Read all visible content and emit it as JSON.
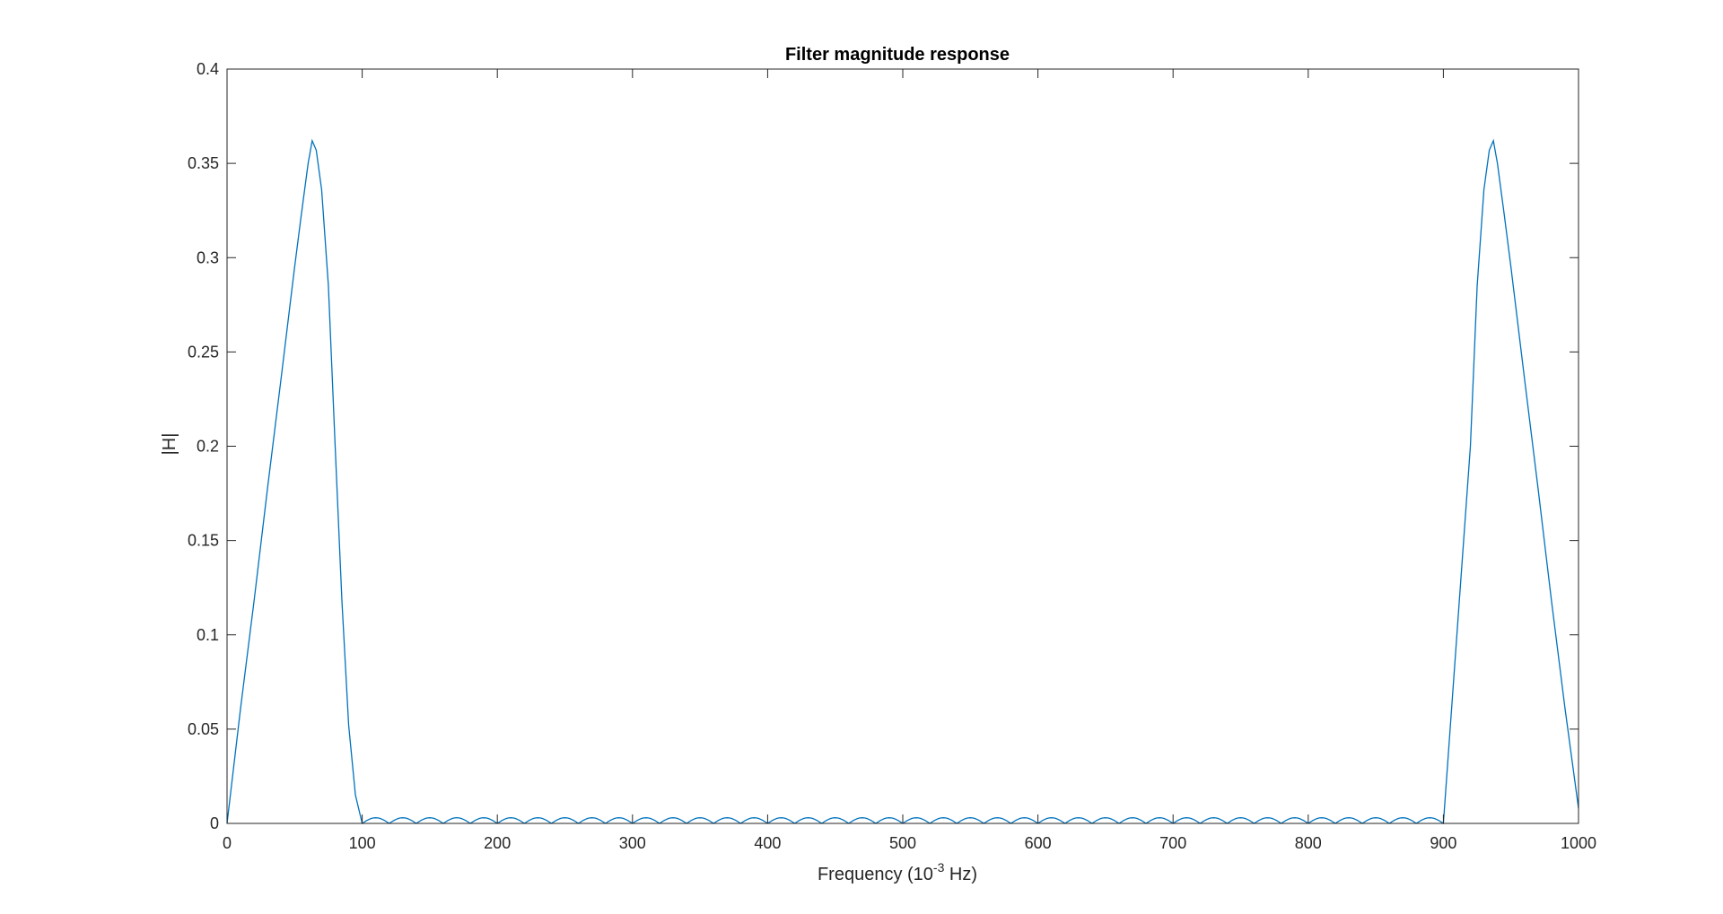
{
  "chart_data": {
    "type": "line",
    "title": "Filter magnitude response",
    "xlabel_base": "Frequency (10",
    "xlabel_exp": "-3",
    "xlabel_unit": " Hz)",
    "ylabel": "|H|",
    "xlim": [
      0,
      1000
    ],
    "ylim": [
      0,
      0.4
    ],
    "xticks": [
      0,
      100,
      200,
      300,
      400,
      500,
      600,
      700,
      800,
      900,
      1000
    ],
    "yticks": [
      0,
      0.05,
      0.1,
      0.15,
      0.2,
      0.25,
      0.3,
      0.35,
      0.4
    ],
    "ytick_labels": [
      "0",
      "0.05",
      "0.1",
      "0.15",
      "0.2",
      "0.25",
      "0.3",
      "0.35",
      "0.4"
    ],
    "grid": false,
    "box": true,
    "line_color": "#0072BD",
    "series": [
      {
        "x": [
          0,
          10,
          20,
          30,
          40,
          50,
          55,
          60,
          63,
          66,
          70,
          75,
          80,
          85,
          90,
          95,
          100,
          920,
          925,
          930,
          934,
          937,
          940,
          945,
          950,
          960,
          970,
          980,
          990,
          1000
        ],
        "y": [
          0,
          0.061,
          0.118,
          0.178,
          0.236,
          0.295,
          0.323,
          0.35,
          0.362,
          0.357,
          0.336,
          0.285,
          0.2,
          0.118,
          0.052,
          0.015,
          0,
          0.2,
          0.285,
          0.336,
          0.357,
          0.362,
          0.35,
          0.323,
          0.295,
          0.236,
          0.178,
          0.118,
          0.061,
          0.008
        ],
        "stopband": {
          "x_start": 100,
          "x_end": 900,
          "lobe_width": 20,
          "lobe_peak": 0.003
        }
      }
    ]
  }
}
